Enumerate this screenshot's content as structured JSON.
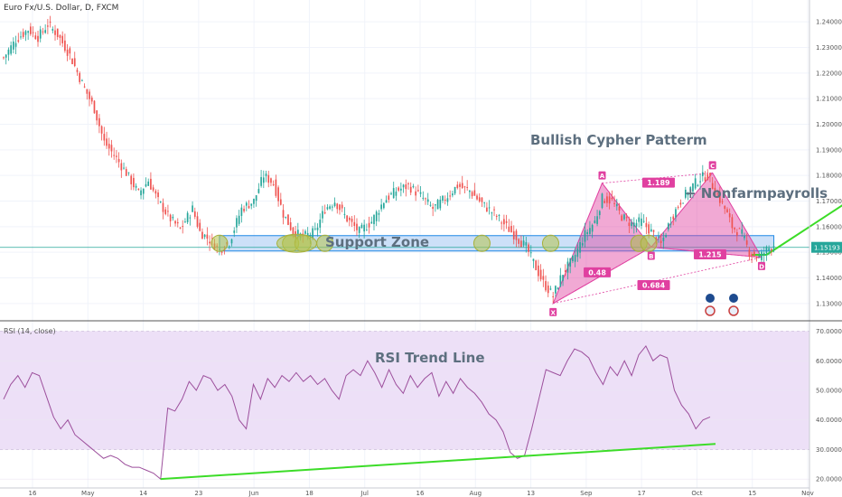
{
  "symbol": "Euro Fx/U.S. Dollar, D, FXCM",
  "rsi_label": "RSI (14, close)",
  "colors": {
    "up": "#26a69a",
    "down": "#ef5350",
    "pattern": "#e040a0",
    "support": "#1e88e5",
    "trend": "#3cdc28",
    "rsi": "#9c4f9c",
    "rsi_band": "#ede0f7"
  },
  "chart_data": [
    {
      "type": "candlestick",
      "ylim": [
        1.125,
        1.245
      ],
      "y_ticks": [
        "1.24000",
        "1.23000",
        "1.22000",
        "1.21000",
        "1.20000",
        "1.19000",
        "1.18000",
        "1.17000",
        "1.16000",
        "1.15000",
        "1.14000",
        "1.13000"
      ],
      "x_ticks": [
        "16",
        "May",
        "14",
        "23",
        "Jun",
        "18",
        "Jul",
        "16",
        "Aug",
        "13",
        "Sep",
        "17",
        "Oct",
        "15",
        "Nov"
      ],
      "last_price": "1.15193",
      "close_path": [
        [
          0,
          1.226
        ],
        [
          5,
          1.233
        ],
        [
          10,
          1.237
        ],
        [
          14,
          1.234
        ],
        [
          18,
          1.239
        ],
        [
          22,
          1.235
        ],
        [
          27,
          1.227
        ],
        [
          32,
          1.216
        ],
        [
          37,
          1.206
        ],
        [
          41,
          1.193
        ],
        [
          45,
          1.188
        ],
        [
          50,
          1.181
        ],
        [
          55,
          1.173
        ],
        [
          59,
          1.178
        ],
        [
          63,
          1.17
        ],
        [
          68,
          1.163
        ],
        [
          72,
          1.159
        ],
        [
          77,
          1.167
        ],
        [
          80,
          1.158
        ],
        [
          85,
          1.154
        ],
        [
          88,
          1.151
        ],
        [
          92,
          1.154
        ],
        [
          97,
          1.167
        ],
        [
          102,
          1.17
        ],
        [
          106,
          1.18
        ],
        [
          110,
          1.177
        ],
        [
          114,
          1.165
        ],
        [
          118,
          1.158
        ],
        [
          122,
          1.156
        ],
        [
          127,
          1.158
        ],
        [
          131,
          1.167
        ],
        [
          135,
          1.17
        ],
        [
          140,
          1.163
        ],
        [
          145,
          1.158
        ],
        [
          150,
          1.162
        ],
        [
          155,
          1.17
        ],
        [
          160,
          1.174
        ],
        [
          165,
          1.176
        ],
        [
          170,
          1.172
        ],
        [
          175,
          1.167
        ],
        [
          180,
          1.171
        ],
        [
          185,
          1.176
        ],
        [
          190,
          1.174
        ],
        [
          195,
          1.169
        ],
        [
          200,
          1.165
        ],
        [
          205,
          1.16
        ],
        [
          209,
          1.156
        ],
        [
          213,
          1.152
        ],
        [
          216,
          1.146
        ],
        [
          220,
          1.138
        ],
        [
          224,
          1.133
        ],
        [
          228,
          1.142
        ],
        [
          232,
          1.147
        ],
        [
          237,
          1.157
        ],
        [
          241,
          1.162
        ],
        [
          244,
          1.171
        ],
        [
          248,
          1.17
        ],
        [
          252,
          1.164
        ],
        [
          256,
          1.161
        ],
        [
          260,
          1.162
        ],
        [
          264,
          1.158
        ],
        [
          268,
          1.153
        ],
        [
          272,
          1.163
        ],
        [
          276,
          1.17
        ],
        [
          280,
          1.175
        ],
        [
          284,
          1.179
        ],
        [
          287,
          1.18
        ],
        [
          290,
          1.174
        ],
        [
          294,
          1.167
        ],
        [
          297,
          1.16
        ],
        [
          301,
          1.157
        ],
        [
          304,
          1.15
        ],
        [
          308,
          1.148
        ],
        [
          311,
          1.151
        ],
        [
          314,
          1.153
        ]
      ],
      "support_zone": [
        1.1505,
        1.1565
      ],
      "support_touches": [
        88,
        117,
        122,
        131,
        195,
        223,
        259,
        263
      ],
      "cypher_pattern": {
        "X": [
          224,
          1.13
        ],
        "A": [
          244,
          1.177
        ],
        "B": [
          264,
          1.152
        ],
        "C": [
          289,
          1.181
        ],
        "D": [
          309,
          1.148
        ]
      },
      "ratios": [
        {
          "text": "1.189",
          "at": [
            267,
            1.177
          ]
        },
        {
          "text": "0.48",
          "at": [
            242,
            1.142
          ]
        },
        {
          "text": "1.215",
          "at": [
            288,
            1.149
          ]
        },
        {
          "text": "0.684",
          "at": [
            265,
            1.137
          ]
        }
      ],
      "point_labels": [
        "X",
        "A",
        "B",
        "C",
        "D"
      ],
      "projection": [
        [
          311,
          1.149
        ],
        [
          343,
          1.169
        ]
      ],
      "annotations": {
        "title": "Bullish Cypher Patterm",
        "support": "Support Zone",
        "news": "+ Nonfarmpayrolls"
      }
    },
    {
      "type": "line",
      "name": "RSI (14, close)",
      "ylim": [
        17,
        72
      ],
      "y_ticks": [
        "70.0000",
        "60.0000",
        "50.0000",
        "40.0000",
        "30.0000",
        "20.0000"
      ],
      "band": [
        30,
        70
      ],
      "values": [
        47,
        52,
        55,
        51,
        56,
        55,
        48,
        41,
        37,
        40,
        35,
        33,
        31,
        29,
        27,
        28,
        27,
        25,
        24,
        24,
        23,
        22,
        20,
        44,
        43,
        47,
        53,
        50,
        55,
        54,
        50,
        52,
        48,
        40,
        37,
        52,
        47,
        54,
        51,
        55,
        53,
        56,
        53,
        55,
        52,
        54,
        50,
        47,
        55,
        57,
        55,
        60,
        56,
        51,
        57,
        52,
        49,
        55,
        51,
        54,
        56,
        48,
        53,
        49,
        54,
        51,
        49,
        46,
        42,
        40,
        36,
        29,
        27,
        28,
        37,
        47,
        57,
        56,
        55,
        60,
        64,
        63,
        61,
        56,
        52,
        58,
        55,
        60,
        55,
        62,
        65,
        60,
        62,
        61,
        50,
        45,
        42,
        37,
        40,
        41
      ],
      "trend_line": [
        [
          0,
          20
        ],
        [
          117,
          31.9
        ]
      ],
      "annotation": "RSI Trend Line"
    }
  ]
}
